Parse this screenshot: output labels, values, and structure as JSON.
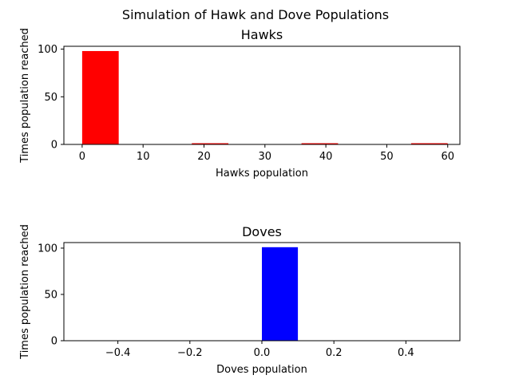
{
  "figure": {
    "suptitle": "Simulation of Hawk and Dove Populations"
  },
  "chart_data": [
    {
      "type": "bar",
      "title": "Hawks",
      "xlabel": "Hawks population",
      "ylabel": "Times population reached",
      "color": "#ff0000",
      "xlim": [
        -3,
        62
      ],
      "ylim": [
        0,
        103
      ],
      "xticks": [
        0,
        10,
        20,
        30,
        40,
        50,
        60
      ],
      "yticks": [
        0,
        50,
        100
      ],
      "bins": [
        {
          "x0": 0,
          "x1": 6,
          "value": 98
        },
        {
          "x0": 6,
          "x1": 12,
          "value": 0
        },
        {
          "x0": 12,
          "x1": 18,
          "value": 0
        },
        {
          "x0": 18,
          "x1": 24,
          "value": 1
        },
        {
          "x0": 24,
          "x1": 30,
          "value": 0
        },
        {
          "x0": 30,
          "x1": 36,
          "value": 0
        },
        {
          "x0": 36,
          "x1": 42,
          "value": 1
        },
        {
          "x0": 42,
          "x1": 48,
          "value": 0
        },
        {
          "x0": 48,
          "x1": 54,
          "value": 0
        },
        {
          "x0": 54,
          "x1": 60,
          "value": 1
        }
      ]
    },
    {
      "type": "bar",
      "title": "Doves",
      "xlabel": "Doves population",
      "ylabel": "Times population reached",
      "color": "#0000ff",
      "xlim": [
        -0.55,
        0.55
      ],
      "ylim": [
        0,
        106
      ],
      "xticks": [
        -0.4,
        -0.2,
        0.0,
        0.2,
        0.4
      ],
      "xtick_labels": [
        "−0.4",
        "−0.2",
        "0.0",
        "0.2",
        "0.4"
      ],
      "yticks": [
        0,
        50,
        100
      ],
      "bins": [
        {
          "x0": 0.0,
          "x1": 0.1,
          "value": 101
        }
      ]
    }
  ]
}
